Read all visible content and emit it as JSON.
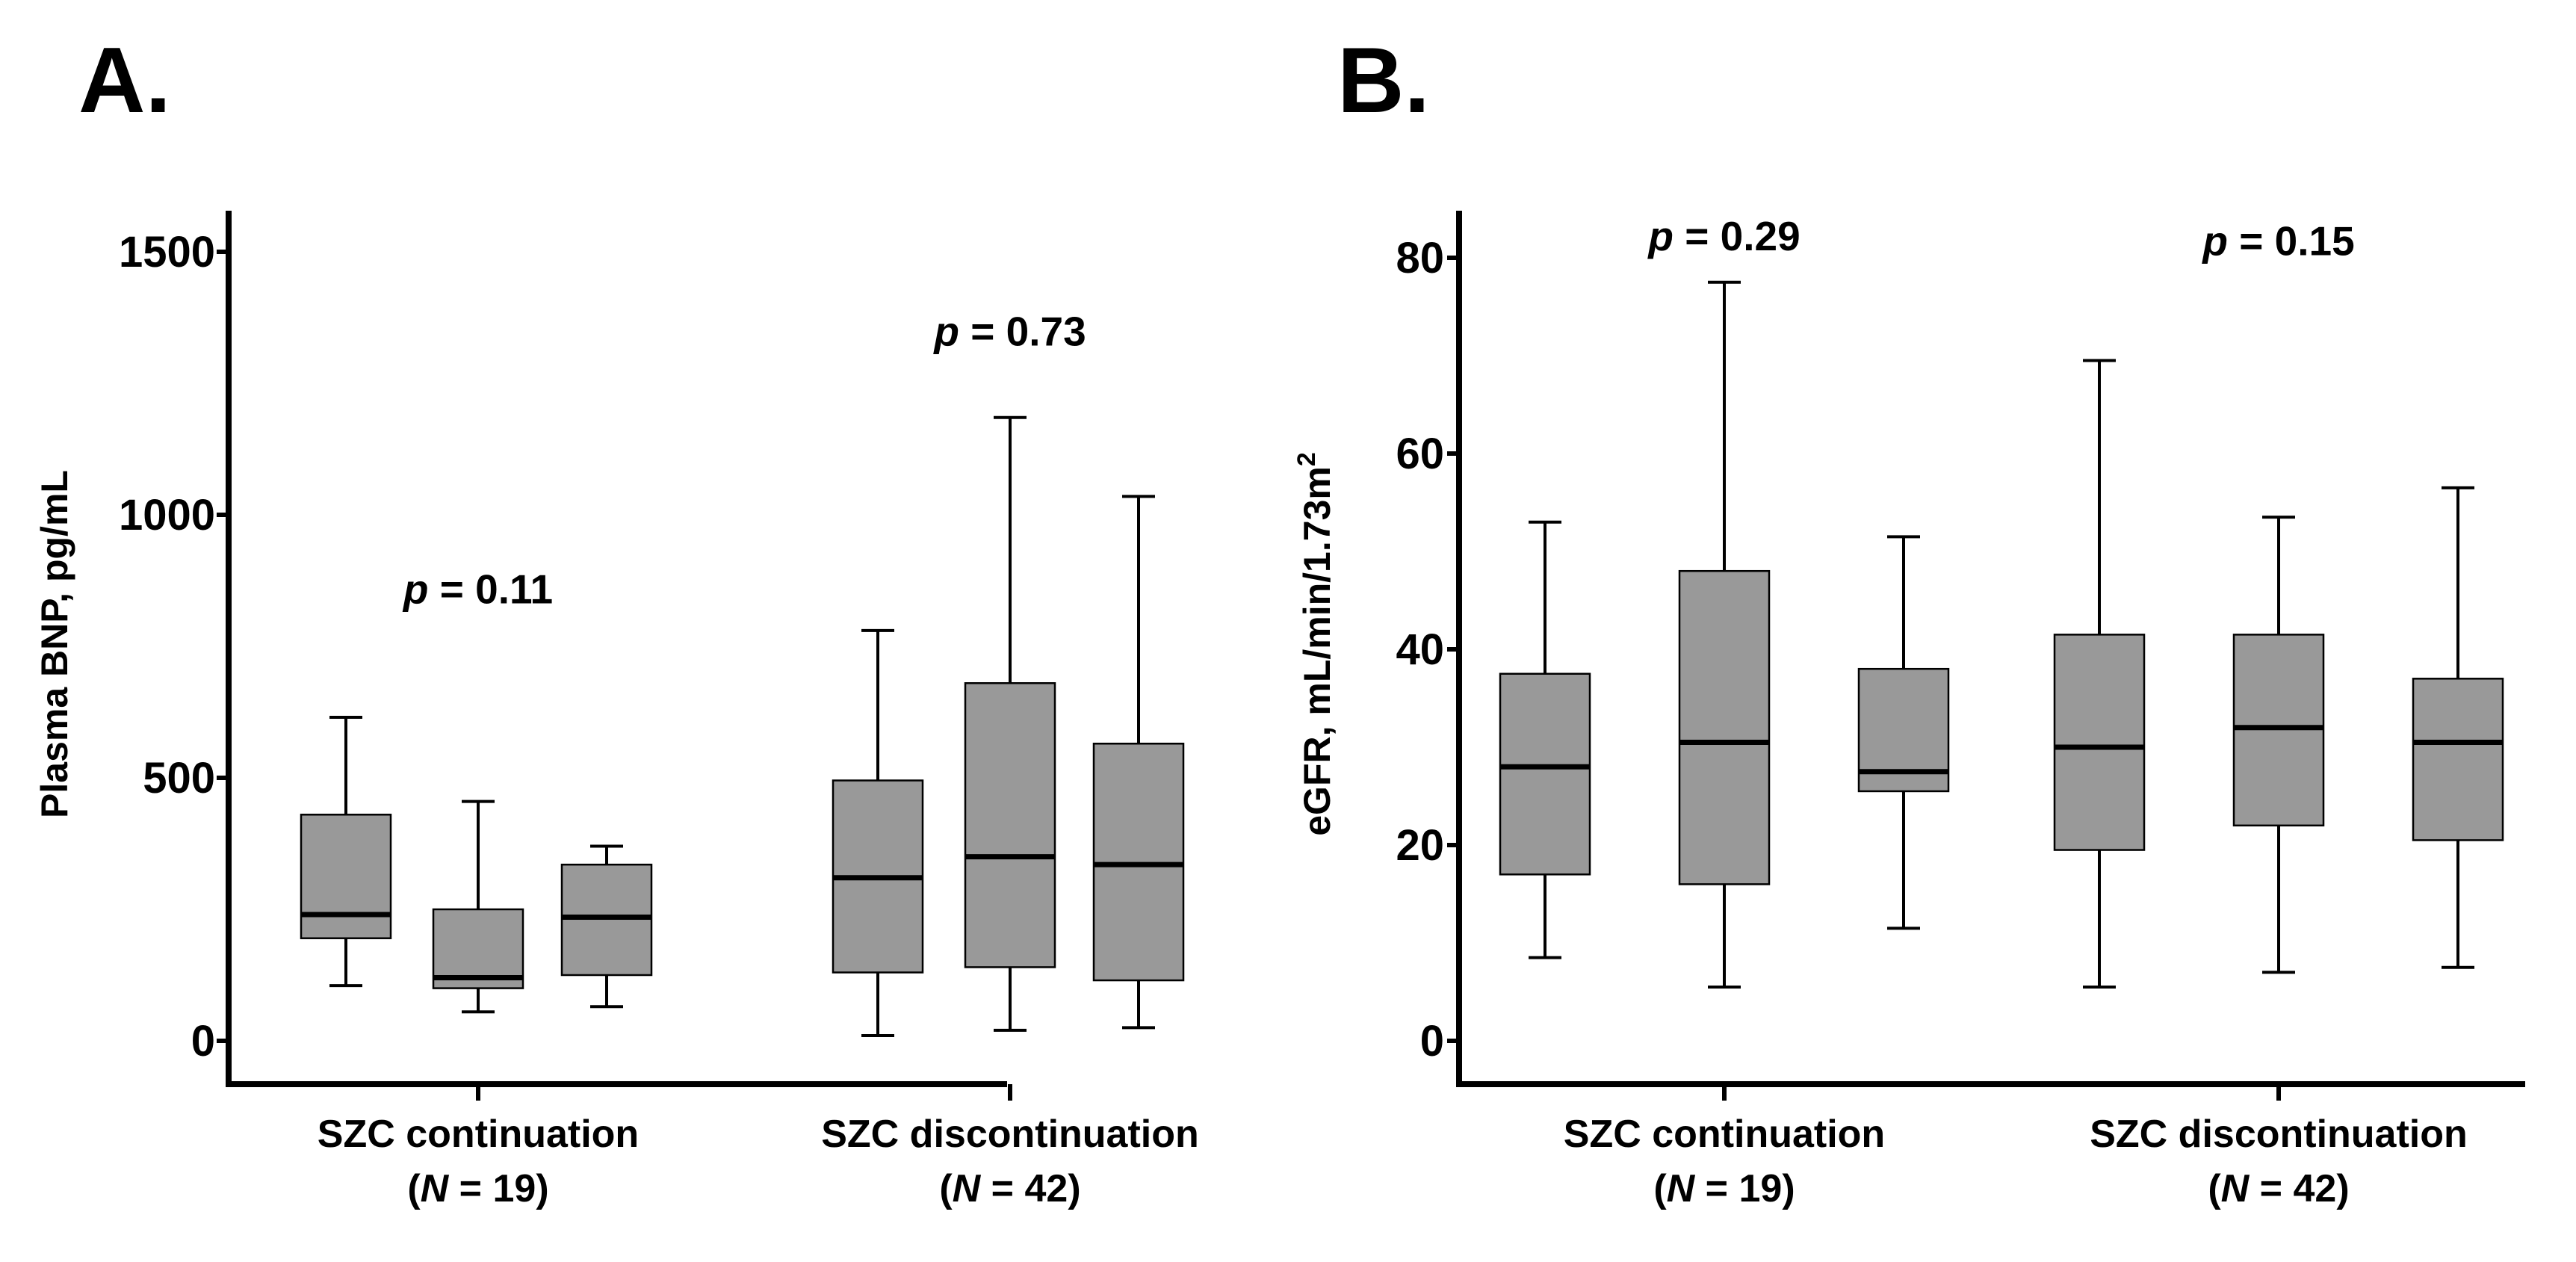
{
  "chart_data": [
    {
      "type": "box",
      "panel_label": "A.",
      "ylabel": "Plasma BNP, pg/mL",
      "ylim": [
        -80,
        1600
      ],
      "yticks": [
        0,
        500,
        1000,
        1500
      ],
      "groups": [
        {
          "label": "SZC continuation",
          "n_label": {
            "open": "(",
            "italic": "N",
            "rest": " = 19)"
          },
          "pvalue": {
            "p": "p",
            "rest": " = 0.11",
            "y": 860
          },
          "boxes": [
            {
              "whisker_low": 105,
              "q1": 195,
              "median": 240,
              "q3": 430,
              "whisker_high": 615
            },
            {
              "whisker_low": 55,
              "q1": 100,
              "median": 120,
              "q3": 250,
              "whisker_high": 455
            },
            {
              "whisker_low": 65,
              "q1": 125,
              "median": 235,
              "q3": 335,
              "whisker_high": 370
            }
          ]
        },
        {
          "label": "SZC discontinuation",
          "n_label": {
            "open": "(",
            "italic": "N",
            "rest": " = 42)"
          },
          "pvalue": {
            "p": "p",
            "rest": " = 0.73",
            "y": 1350
          },
          "boxes": [
            {
              "whisker_low": 10,
              "q1": 130,
              "median": 310,
              "q3": 495,
              "whisker_high": 780
            },
            {
              "whisker_low": 20,
              "q1": 140,
              "median": 350,
              "q3": 680,
              "whisker_high": 1185
            },
            {
              "whisker_low": 25,
              "q1": 115,
              "median": 335,
              "q3": 565,
              "whisker_high": 1035
            }
          ]
        }
      ]
    },
    {
      "type": "box",
      "panel_label": "B.",
      "ylabel": "eGFR, mL/min/1.73m",
      "ylabel_sup": "2",
      "ylim": [
        -5,
        84
      ],
      "yticks": [
        0,
        20,
        40,
        60,
        80
      ],
      "groups": [
        {
          "label": "SZC continuation",
          "n_label": {
            "open": "(",
            "italic": "N",
            "rest": " = 19)"
          },
          "pvalue": {
            "p": "p",
            "rest": " = 0.29",
            "y": 82.3
          },
          "boxes": [
            {
              "whisker_low": 8.5,
              "q1": 17,
              "median": 28,
              "q3": 37.5,
              "whisker_high": 53
            },
            {
              "whisker_low": 5.5,
              "q1": 16,
              "median": 30.5,
              "q3": 48,
              "whisker_high": 77.5
            },
            {
              "whisker_low": 11.5,
              "q1": 25.5,
              "median": 27.5,
              "q3": 38,
              "whisker_high": 51.5
            }
          ]
        },
        {
          "label": "SZC discontinuation",
          "n_label": {
            "open": "(",
            "italic": "N",
            "rest": " = 42)"
          },
          "pvalue": {
            "p": "p",
            "rest": " = 0.15",
            "y": 81.8
          },
          "boxes": [
            {
              "whisker_low": 5.5,
              "q1": 19.5,
              "median": 30,
              "q3": 41.5,
              "whisker_high": 69.5
            },
            {
              "whisker_low": 7,
              "q1": 22,
              "median": 32,
              "q3": 41.5,
              "whisker_high": 53.5
            },
            {
              "whisker_low": 7.5,
              "q1": 20.5,
              "median": 30.5,
              "q3": 37,
              "whisker_high": 56.5
            }
          ]
        }
      ]
    }
  ],
  "colors": {
    "box_fill": "#999999",
    "stroke": "#000000",
    "background": "#ffffff"
  }
}
